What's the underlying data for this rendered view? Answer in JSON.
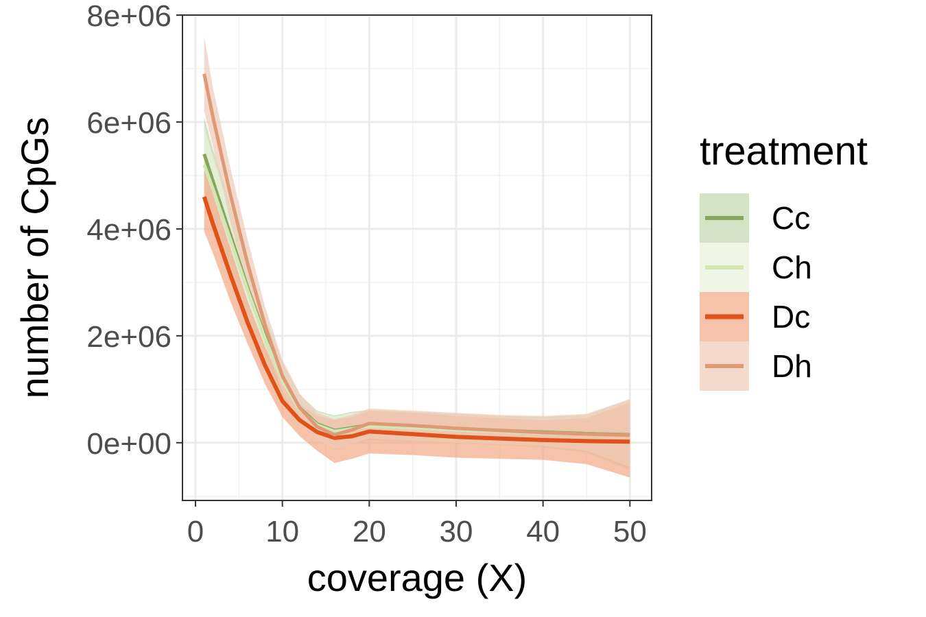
{
  "chart_data": {
    "type": "line",
    "xlabel": "coverage (X)",
    "ylabel": "number of CpGs",
    "xlim": [
      -1.5,
      52.5
    ],
    "ylim": [
      -1080000,
      8000000
    ],
    "x_ticks": [
      0,
      10,
      20,
      30,
      40,
      50
    ],
    "x_tick_labels": [
      "0",
      "10",
      "20",
      "30",
      "40",
      "50"
    ],
    "y_ticks": [
      0,
      2000000,
      4000000,
      6000000,
      8000000
    ],
    "y_tick_labels": [
      "0e+00",
      "2e+06",
      "4e+06",
      "6e+06",
      "8e+06"
    ],
    "grid": true,
    "legend": {
      "title": "treatment",
      "position": "right",
      "entries": [
        "Cc",
        "Ch",
        "Dc",
        "Dh"
      ]
    },
    "series": [
      {
        "name": "Cc",
        "color": "#88a65e",
        "fill": "#c5d9b1",
        "fill_opacity": 0.75,
        "line_width": 5,
        "x": [
          1,
          2,
          4,
          6,
          8,
          10,
          12,
          14,
          16,
          18,
          20,
          25,
          30,
          35,
          40,
          45,
          50
        ],
        "y": [
          5400000,
          4900000,
          3900000,
          2900000,
          2000000,
          1200000,
          650000,
          350000,
          230000,
          280000,
          330000,
          300000,
          260000,
          230000,
          200000,
          170000,
          150000
        ],
        "lower": [
          4700000,
          4300000,
          3350000,
          2450000,
          1650000,
          900000,
          400000,
          100000,
          -50000,
          -20000,
          50000,
          20000,
          -10000,
          -40000,
          -80000,
          -180000,
          -500000
        ],
        "upper": [
          6100000,
          5500000,
          4450000,
          3350000,
          2350000,
          1500000,
          900000,
          600000,
          510000,
          580000,
          610000,
          580000,
          540000,
          500000,
          480000,
          520000,
          800000
        ]
      },
      {
        "name": "Ch",
        "color": "#d4e6b5",
        "fill": "#e8f2dc",
        "fill_opacity": 0.7,
        "line_width": 5,
        "x": [
          1,
          2,
          4,
          6,
          8,
          10,
          12,
          14,
          16,
          18,
          20,
          25,
          30,
          35,
          40,
          45,
          50
        ],
        "y": [
          5200000,
          4750000,
          3800000,
          2850000,
          1950000,
          1150000,
          620000,
          330000,
          210000,
          260000,
          310000,
          280000,
          240000,
          210000,
          180000,
          160000,
          140000
        ],
        "lower": [
          4500000,
          4150000,
          3250000,
          2400000,
          1600000,
          850000,
          380000,
          90000,
          -60000,
          -30000,
          40000,
          10000,
          -20000,
          -50000,
          -90000,
          -190000,
          -520000
        ],
        "upper": [
          5900000,
          5350000,
          4350000,
          3300000,
          2300000,
          1450000,
          880000,
          580000,
          490000,
          560000,
          590000,
          560000,
          520000,
          480000,
          460000,
          510000,
          790000
        ]
      },
      {
        "name": "Dc",
        "color": "#e0521a",
        "fill": "#f4a886",
        "fill_opacity": 0.7,
        "line_width": 6,
        "x": [
          1,
          2,
          4,
          6,
          8,
          10,
          12,
          14,
          16,
          18,
          20,
          25,
          30,
          35,
          40,
          45,
          50
        ],
        "y": [
          4600000,
          4100000,
          3150000,
          2250000,
          1450000,
          780000,
          420000,
          200000,
          90000,
          120000,
          210000,
          160000,
          110000,
          80000,
          50000,
          30000,
          20000
        ],
        "lower": [
          3950000,
          3550000,
          2650000,
          1850000,
          1100000,
          480000,
          120000,
          -150000,
          -380000,
          -300000,
          -200000,
          -230000,
          -280000,
          -300000,
          -320000,
          -400000,
          -650000
        ],
        "upper": [
          5250000,
          4650000,
          3650000,
          2650000,
          1800000,
          1080000,
          720000,
          500000,
          420000,
          480000,
          600000,
          560000,
          500000,
          460000,
          420000,
          460000,
          750000
        ]
      },
      {
        "name": "Dh",
        "color": "#de9a77",
        "fill": "#efcbb8",
        "fill_opacity": 0.7,
        "line_width": 5,
        "x": [
          1,
          2,
          4,
          6,
          8,
          10,
          12,
          14,
          16,
          18,
          20,
          25,
          30,
          35,
          40,
          45,
          50
        ],
        "y": [
          6900000,
          6100000,
          4650000,
          3350000,
          2200000,
          1250000,
          650000,
          300000,
          150000,
          240000,
          360000,
          320000,
          270000,
          230000,
          190000,
          160000,
          140000
        ],
        "lower": [
          6200000,
          5550000,
          4150000,
          2900000,
          1850000,
          950000,
          380000,
          50000,
          -100000,
          -20000,
          80000,
          40000,
          0,
          -30000,
          -60000,
          -150000,
          -450000
        ],
        "upper": [
          7600000,
          6650000,
          5150000,
          3800000,
          2550000,
          1550000,
          920000,
          560000,
          440000,
          520000,
          640000,
          600000,
          560000,
          520000,
          500000,
          540000,
          820000
        ]
      }
    ]
  }
}
